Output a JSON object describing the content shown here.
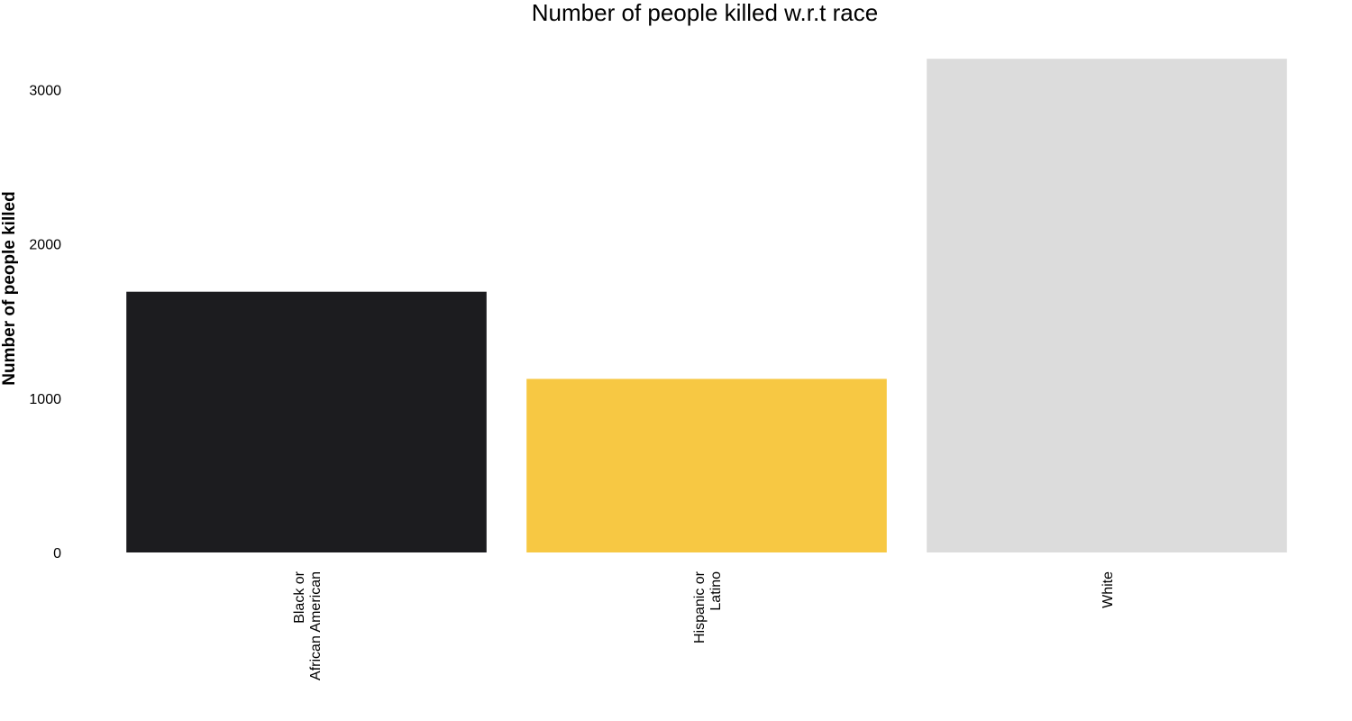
{
  "chart_data": {
    "type": "bar",
    "title": "Number of people killed w.r.t race",
    "xlabel": "",
    "ylabel": "Number of people killed",
    "categories": [
      "Black or\nAfrican American",
      "Hispanic or\nLatino",
      "White"
    ],
    "values": [
      1690,
      1125,
      3200
    ],
    "colors": [
      "#1c1c1f",
      "#f7c843",
      "#dcdcdc"
    ],
    "ylim": [
      0,
      3200
    ],
    "yticks": [
      0,
      1000,
      2000,
      3000
    ],
    "grid": false,
    "legend": "none"
  }
}
